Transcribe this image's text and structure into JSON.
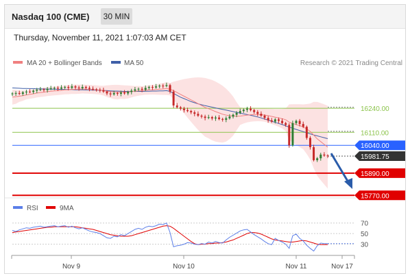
{
  "header": {
    "title": "Nasdaq 100 (CME)",
    "timeframe": "30 MIN"
  },
  "datetime": "Thursday, November 11, 2021 1:07:03 AM CET",
  "legend": {
    "ma20_bb": "MA 20 + Bollinger Bands",
    "ma50": "MA 50",
    "credit": "Research © 2021 Trading Central"
  },
  "osc_legend": {
    "rsi": "RSI",
    "ma9": "9MA"
  },
  "colors": {
    "up": "#2e7d32",
    "down": "#c62828",
    "bb_fill": "#fbd5d5",
    "ma20": "#f08080",
    "ma50": "#3f5fa8",
    "green_level": "#8bc34a",
    "blue_level": "#2962ff",
    "red_level": "#e00000",
    "last": "#333333",
    "arrow": "#2a5caa"
  },
  "chart_data": [
    {
      "type": "candlestick",
      "title": "Nasdaq 100 (CME)",
      "x_ticks": [
        "Nov 9",
        "Nov 10",
        "Nov 11",
        "Nov 17"
      ],
      "ylim": [
        15760,
        16440
      ],
      "levels": [
        {
          "value": 16240.0,
          "label": "16240.00",
          "style": "green"
        },
        {
          "value": 16110.0,
          "label": "16110.00",
          "style": "green"
        },
        {
          "value": 16040.0,
          "label": "16040.00",
          "style": "blue"
        },
        {
          "value": 15981.75,
          "label": "15981.75",
          "style": "last"
        },
        {
          "value": 15890.0,
          "label": "15890.00",
          "style": "red"
        },
        {
          "value": 15770.0,
          "label": "15770.00",
          "style": "red"
        }
      ],
      "close": [
        16320,
        16322,
        16318,
        16326,
        16330,
        16328,
        16335,
        16340,
        16342,
        16338,
        16345,
        16348,
        16350,
        16346,
        16352,
        16355,
        16350,
        16358,
        16352,
        16348,
        16355,
        16350,
        16345,
        16342,
        16340,
        16338,
        16330,
        16320,
        16315,
        16322,
        16318,
        16325,
        16320,
        16328,
        16335,
        16342,
        16345,
        16340,
        16350,
        16355,
        16352,
        16358,
        16362,
        16360,
        16365,
        16330,
        16255,
        16245,
        16238,
        16230,
        16225,
        16218,
        16210,
        16200,
        16195,
        16188,
        16192,
        16185,
        16190,
        16182,
        16178,
        16186,
        16195,
        16205,
        16215,
        16225,
        16232,
        16238,
        16230,
        16220,
        16210,
        16200,
        16188,
        16175,
        16168,
        16180,
        16172,
        16160,
        16150,
        16040,
        16160,
        16172,
        16155,
        16140,
        16080,
        16030,
        15960,
        15970,
        15990,
        15985,
        15981.75
      ],
      "series": [
        {
          "name": "MA 20",
          "values": [
            16300,
            16302,
            16305,
            16308,
            16312,
            16315,
            16318,
            16322,
            16325,
            16327,
            16330,
            16332,
            16334,
            16335,
            16337,
            16339,
            16340,
            16342,
            16342,
            16343,
            16344,
            16343,
            16342,
            16341,
            16340,
            16338,
            16335,
            16332,
            16330,
            16328,
            16327,
            16328,
            16327,
            16328,
            16330,
            16332,
            16334,
            16335,
            16337,
            16339,
            16340,
            16341,
            16343,
            16344,
            16346,
            16343,
            16335,
            16325,
            16315,
            16305,
            16295,
            16285,
            16275,
            16265,
            16255,
            16245,
            16238,
            16230,
            16222,
            16215,
            16208,
            16203,
            16200,
            16198,
            16197,
            16198,
            16200,
            16203,
            16205,
            16206,
            16206,
            16205,
            16203,
            16200,
            16196,
            16192,
            16188,
            16184,
            16178,
            16165,
            16158,
            16152,
            16146,
            16140,
            16128,
            16115,
            16095,
            16075,
            16060,
            16045,
            16030
          ]
        },
        {
          "name": "MA 50",
          "values": [
            16350,
            16349,
            16348,
            16347,
            16347,
            16346,
            16346,
            16345,
            16345,
            16344,
            16344,
            16343,
            16343,
            16342,
            16342,
            16341,
            16341,
            16341,
            16340,
            16340,
            16340,
            16339,
            16339,
            16338,
            16338,
            16337,
            16336,
            16335,
            16334,
            16333,
            16333,
            16332,
            16331,
            16331,
            16331,
            16331,
            16331,
            16331,
            16332,
            16332,
            16333,
            16333,
            16334,
            16334,
            16335,
            16331,
            16320,
            16310,
            16300,
            16292,
            16284,
            16276,
            16270,
            16264,
            16259,
            16254,
            16250,
            16246,
            16242,
            16238,
            16234,
            16230,
            16226,
            16222,
            16218,
            16214,
            16210,
            16206,
            16202,
            16198,
            16193,
            16188,
            16182,
            16176,
            16170,
            16164,
            16158,
            16152,
            16145,
            16138,
            16132,
            16126,
            16120,
            16114,
            16108,
            16102,
            16096,
            16091,
            16086,
            16081,
            16076
          ]
        },
        {
          "name": "RSI",
          "values": [
            56,
            54,
            57,
            59,
            61,
            60,
            62,
            63,
            64,
            62,
            63,
            64,
            65,
            63,
            64,
            65,
            62,
            64,
            61,
            59,
            61,
            58,
            55,
            53,
            52,
            50,
            46,
            42,
            41,
            45,
            44,
            48,
            46,
            50,
            54,
            58,
            60,
            58,
            62,
            64,
            63,
            65,
            68,
            67,
            70,
            52,
            25,
            27,
            28,
            30,
            33,
            32,
            30,
            29,
            31,
            30,
            34,
            32,
            35,
            33,
            32,
            38,
            43,
            47,
            51,
            55,
            57,
            58,
            53,
            48,
            44,
            40,
            35,
            31,
            29,
            41,
            37,
            34,
            30,
            22,
            46,
            49,
            41,
            36,
            28,
            22,
            17,
            27,
            32,
            31,
            31
          ]
        },
        {
          "name": "9MA",
          "values": [
            52,
            53,
            54,
            55,
            56,
            57,
            58,
            59,
            60,
            61,
            62,
            62,
            63,
            63,
            63,
            63,
            63,
            63,
            63,
            62,
            61,
            60,
            59,
            58,
            56,
            54,
            52,
            50,
            48,
            47,
            46,
            45,
            45,
            45,
            46,
            48,
            50,
            52,
            54,
            56,
            58,
            60,
            62,
            64,
            65,
            64,
            60,
            55,
            50,
            45,
            40,
            35,
            31,
            29,
            30,
            30,
            31,
            31,
            32,
            32,
            33,
            34,
            36,
            38,
            41,
            44,
            47,
            50,
            52,
            52,
            51,
            49,
            46,
            43,
            40,
            38,
            37,
            36,
            35,
            34,
            34,
            35,
            36,
            37,
            36,
            34,
            32,
            30,
            29,
            29,
            29
          ]
        }
      ],
      "rsi_ticks": [
        70,
        50,
        30
      ]
    }
  ]
}
